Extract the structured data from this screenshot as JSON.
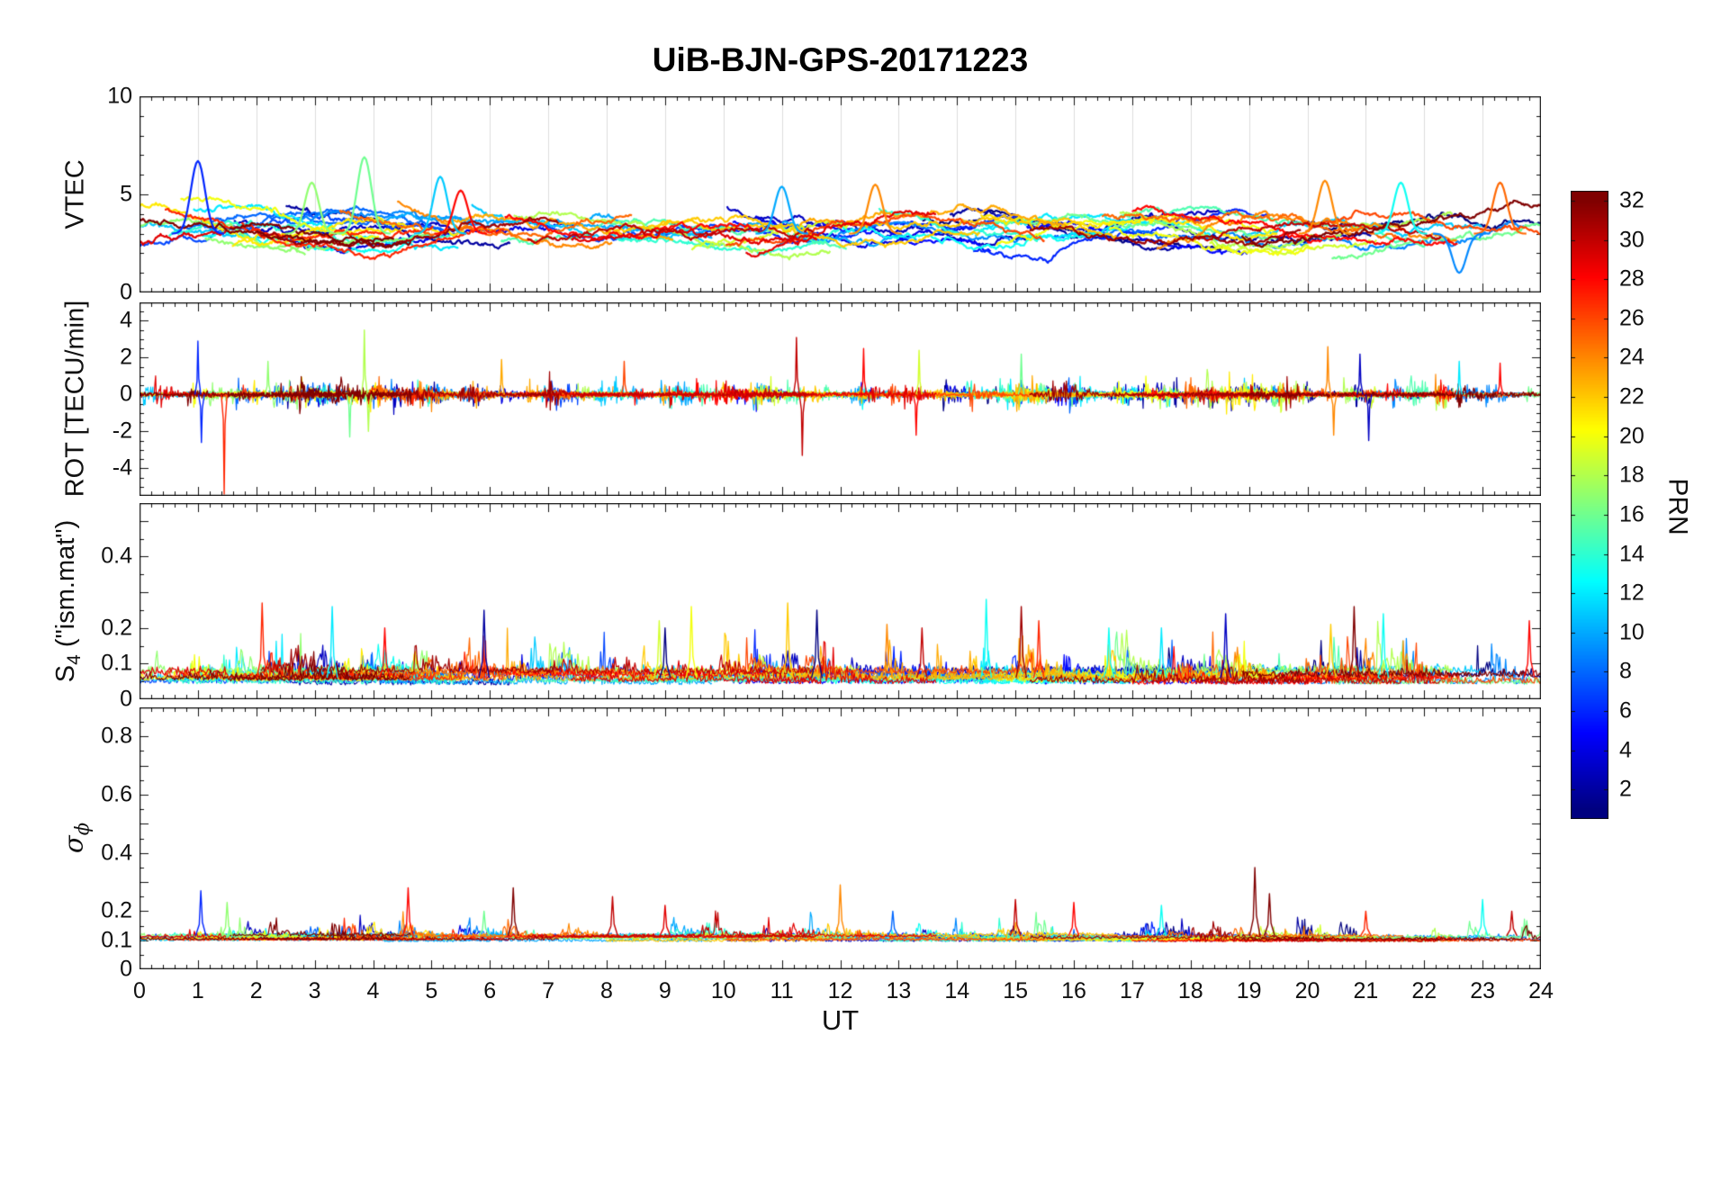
{
  "chart_data": {
    "type": "line",
    "title": "UiB-BJN-GPS-20171223",
    "description": "Four stacked time-series panels of GPS ionosphere parameters versus universal time, one noisy trace per satellite PRN (1-32), colored by the jet colormap.",
    "x": {
      "label": "UT",
      "lim": [
        0,
        24
      ],
      "minor_step": 0.2,
      "ticks": [
        {
          "v": 0,
          "label": "0"
        },
        {
          "v": 1,
          "label": "1"
        },
        {
          "v": 2,
          "label": "2"
        },
        {
          "v": 3,
          "label": "3"
        },
        {
          "v": 4,
          "label": "4"
        },
        {
          "v": 5,
          "label": "5"
        },
        {
          "v": 6,
          "label": "6"
        },
        {
          "v": 7,
          "label": "7"
        },
        {
          "v": 8,
          "label": "8"
        },
        {
          "v": 9,
          "label": "9"
        },
        {
          "v": 10,
          "label": "10"
        },
        {
          "v": 11,
          "label": "11"
        },
        {
          "v": 12,
          "label": "12"
        },
        {
          "v": 13,
          "label": "13"
        },
        {
          "v": 14,
          "label": "14"
        },
        {
          "v": 15,
          "label": "15"
        },
        {
          "v": 16,
          "label": "16"
        },
        {
          "v": 17,
          "label": "17"
        },
        {
          "v": 18,
          "label": "18"
        },
        {
          "v": 19,
          "label": "19"
        },
        {
          "v": 20,
          "label": "20"
        },
        {
          "v": 21,
          "label": "21"
        },
        {
          "v": 22,
          "label": "22"
        },
        {
          "v": 23,
          "label": "23"
        },
        {
          "v": 24,
          "label": "24"
        }
      ]
    },
    "colorbar": {
      "label": "PRN",
      "vmin": 0.5,
      "vmax": 32.5,
      "colormap": "jet",
      "ticks": [
        {
          "v": 2,
          "label": "2"
        },
        {
          "v": 4,
          "label": "4"
        },
        {
          "v": 6,
          "label": "6"
        },
        {
          "v": 8,
          "label": "8"
        },
        {
          "v": 10,
          "label": "10"
        },
        {
          "v": 12,
          "label": "12"
        },
        {
          "v": 14,
          "label": "14"
        },
        {
          "v": 16,
          "label": "16"
        },
        {
          "v": 18,
          "label": "18"
        },
        {
          "v": 20,
          "label": "20"
        },
        {
          "v": 22,
          "label": "22"
        },
        {
          "v": 24,
          "label": "24"
        },
        {
          "v": 26,
          "label": "26"
        },
        {
          "v": 28,
          "label": "28"
        },
        {
          "v": 30,
          "label": "30"
        },
        {
          "v": 32,
          "label": "32"
        }
      ]
    },
    "synthesis": {
      "seed": 20171223,
      "prn_count": 32,
      "note": "Traces are dense noisy satellite arcs; reconstructed statistically from seeded noise plus the listed prominent features read off the figure."
    },
    "panels": [
      {
        "name": "VTEC",
        "ylabel": "VTEC",
        "ylim": [
          0,
          10
        ],
        "yticks": [
          {
            "v": 0,
            "label": "0"
          },
          {
            "v": 5,
            "label": "5"
          },
          {
            "v": 10,
            "label": "10"
          }
        ],
        "ymajor_marks": [
          0,
          5,
          10
        ],
        "yminor_step": 1,
        "grid_x": true,
        "typical_range": [
          2,
          5
        ],
        "synth": {
          "kind": "walk",
          "base": 3.1,
          "start_range": [
            2.2,
            4.2
          ],
          "step": 0.1,
          "pull": 0.015,
          "clamp": [
            1.1,
            7.0
          ],
          "linewidth": 2.2
        },
        "features": [
          {
            "prn": 6,
            "t": 1.0,
            "v": 6.7
          },
          {
            "prn": 16,
            "t": 3.85,
            "v": 6.9
          },
          {
            "prn": 17,
            "t": 2.95,
            "v": 5.6
          },
          {
            "prn": 11,
            "t": 5.15,
            "v": 5.9
          },
          {
            "prn": 28,
            "t": 5.5,
            "v": 5.2
          },
          {
            "prn": 10,
            "t": 11.0,
            "v": 5.4
          },
          {
            "prn": 24,
            "t": 12.6,
            "v": 5.5
          },
          {
            "prn": 24,
            "t": 20.3,
            "v": 5.7
          },
          {
            "prn": 13,
            "t": 21.6,
            "v": 5.6
          },
          {
            "prn": 25,
            "t": 23.3,
            "v": 5.6
          },
          {
            "prn": 9,
            "t": 22.6,
            "v": 1.0
          }
        ]
      },
      {
        "name": "ROT",
        "ylabel": "ROT [TECU/min]",
        "ylim": [
          -5.5,
          5
        ],
        "yticks": [
          {
            "v": -4,
            "label": "-4"
          },
          {
            "v": -2,
            "label": "-2"
          },
          {
            "v": 0,
            "label": "0"
          },
          {
            "v": 2,
            "label": "2"
          },
          {
            "v": 4,
            "label": "4"
          }
        ],
        "ymajor_marks": [
          -4,
          -2,
          0,
          2,
          4
        ],
        "yminor_step": 0.5,
        "grid_x": false,
        "typical_range": [
          -0.5,
          0.5
        ],
        "synth": {
          "kind": "spiky",
          "env": 0.12,
          "burst_p": 0.01,
          "burst_amp": [
            0.35,
            1.25
          ],
          "env_decay": 0.06,
          "linewidth": 1.2
        },
        "features": [
          {
            "prn": 6,
            "t": 1.0,
            "v": 2.9
          },
          {
            "prn": 6,
            "t": 1.06,
            "v": -2.6
          },
          {
            "prn": 27,
            "t": 1.45,
            "v": -5.4
          },
          {
            "prn": 17,
            "t": 2.2,
            "v": 1.8
          },
          {
            "prn": 16,
            "t": 3.6,
            "v": -2.3
          },
          {
            "prn": 18,
            "t": 3.85,
            "v": 3.5
          },
          {
            "prn": 18,
            "t": 3.92,
            "v": -2.0
          },
          {
            "prn": 23,
            "t": 6.2,
            "v": 1.9
          },
          {
            "prn": 26,
            "t": 8.3,
            "v": 1.8
          },
          {
            "prn": 30,
            "t": 11.25,
            "v": 3.1
          },
          {
            "prn": 30,
            "t": 11.35,
            "v": -3.3
          },
          {
            "prn": 28,
            "t": 12.4,
            "v": 2.5
          },
          {
            "prn": 28,
            "t": 13.3,
            "v": -2.2
          },
          {
            "prn": 19,
            "t": 13.35,
            "v": 2.4
          },
          {
            "prn": 16,
            "t": 15.1,
            "v": 2.2
          },
          {
            "prn": 24,
            "t": 20.35,
            "v": 2.6
          },
          {
            "prn": 24,
            "t": 20.45,
            "v": -2.2
          },
          {
            "prn": 3,
            "t": 20.9,
            "v": 2.2
          },
          {
            "prn": 3,
            "t": 21.05,
            "v": -2.5
          },
          {
            "prn": 12,
            "t": 22.6,
            "v": 1.8
          },
          {
            "prn": 28,
            "t": 23.3,
            "v": 1.7
          }
        ]
      },
      {
        "name": "S4",
        "ylabel_main": "S",
        "ylabel_sub": "4",
        "ylabel_rest": " (\"ism.mat\")",
        "ylim": [
          0,
          0.55
        ],
        "yticks": [
          {
            "v": 0,
            "label": "0"
          },
          {
            "v": 0.1,
            "label": "0.1"
          },
          {
            "v": 0.2,
            "label": "0.2"
          },
          {
            "v": 0.4,
            "label": "0.4"
          }
        ],
        "ymajor_marks": [
          0,
          0.1,
          0.2,
          0.3,
          0.4,
          0.5
        ],
        "yminor_step": 0.05,
        "grid_x": false,
        "typical_range": [
          0.04,
          0.12
        ],
        "synth": {
          "kind": "band",
          "base_range": [
            0.04,
            0.075
          ],
          "env": 0.02,
          "burst_p": 0.008,
          "burst_amp": [
            0.05,
            0.17
          ],
          "env_decay": 0.08,
          "linewidth": 1.2
        },
        "features": [
          {
            "prn": 27,
            "t": 2.1,
            "v": 0.27
          },
          {
            "prn": 12,
            "t": 3.3,
            "v": 0.26
          },
          {
            "prn": 28,
            "t": 4.2,
            "v": 0.2
          },
          {
            "prn": 2,
            "t": 5.9,
            "v": 0.25
          },
          {
            "prn": 19,
            "t": 8.9,
            "v": 0.22
          },
          {
            "prn": 1,
            "t": 9.0,
            "v": 0.2
          },
          {
            "prn": 20,
            "t": 9.45,
            "v": 0.26
          },
          {
            "prn": 22,
            "t": 11.1,
            "v": 0.27
          },
          {
            "prn": 1,
            "t": 11.6,
            "v": 0.25
          },
          {
            "prn": 24,
            "t": 12.8,
            "v": 0.21
          },
          {
            "prn": 30,
            "t": 13.4,
            "v": 0.2
          },
          {
            "prn": 13,
            "t": 14.5,
            "v": 0.28
          },
          {
            "prn": 31,
            "t": 15.1,
            "v": 0.26
          },
          {
            "prn": 27,
            "t": 15.4,
            "v": 0.22
          },
          {
            "prn": 13,
            "t": 16.6,
            "v": 0.2
          },
          {
            "prn": 12,
            "t": 17.5,
            "v": 0.2
          },
          {
            "prn": 3,
            "t": 18.6,
            "v": 0.24
          },
          {
            "prn": 22,
            "t": 20.4,
            "v": 0.21
          },
          {
            "prn": 32,
            "t": 20.8,
            "v": 0.26
          },
          {
            "prn": 13,
            "t": 21.3,
            "v": 0.24
          },
          {
            "prn": 28,
            "t": 23.8,
            "v": 0.22
          }
        ]
      },
      {
        "name": "sigma_phi",
        "ylabel_main": "σ",
        "ylabel_sub": "ϕ",
        "ylim": [
          0,
          0.9
        ],
        "yticks": [
          {
            "v": 0,
            "label": "0"
          },
          {
            "v": 0.1,
            "label": "0.1"
          },
          {
            "v": 0.2,
            "label": "0.2"
          },
          {
            "v": 0.4,
            "label": "0.4"
          },
          {
            "v": 0.6,
            "label": "0.6"
          },
          {
            "v": 0.8,
            "label": "0.8"
          }
        ],
        "ymajor_marks": [
          0,
          0.1,
          0.2,
          0.3,
          0.4,
          0.5,
          0.6,
          0.7,
          0.8,
          0.9
        ],
        "yminor_step": 0.05,
        "grid_x": false,
        "typical_range": [
          0.09,
          0.15
        ],
        "synth": {
          "kind": "band",
          "base_range": [
            0.095,
            0.115
          ],
          "env": 0.01,
          "burst_p": 0.005,
          "burst_amp": [
            0.03,
            0.1
          ],
          "env_decay": 0.08,
          "linewidth": 1.2
        },
        "features": [
          {
            "prn": 6,
            "t": 1.05,
            "v": 0.27
          },
          {
            "prn": 17,
            "t": 1.5,
            "v": 0.23
          },
          {
            "prn": 28,
            "t": 4.6,
            "v": 0.28
          },
          {
            "prn": 16,
            "t": 5.9,
            "v": 0.2
          },
          {
            "prn": 32,
            "t": 6.4,
            "v": 0.28
          },
          {
            "prn": 30,
            "t": 8.1,
            "v": 0.25
          },
          {
            "prn": 29,
            "t": 9.0,
            "v": 0.22
          },
          {
            "prn": 24,
            "t": 12.0,
            "v": 0.29
          },
          {
            "prn": 8,
            "t": 12.9,
            "v": 0.2
          },
          {
            "prn": 30,
            "t": 15.0,
            "v": 0.24
          },
          {
            "prn": 28,
            "t": 16.0,
            "v": 0.23
          },
          {
            "prn": 13,
            "t": 17.5,
            "v": 0.22
          },
          {
            "prn": 32,
            "t": 19.1,
            "v": 0.35
          },
          {
            "prn": 32,
            "t": 19.35,
            "v": 0.26
          },
          {
            "prn": 27,
            "t": 21.0,
            "v": 0.2
          },
          {
            "prn": 13,
            "t": 23.0,
            "v": 0.24
          },
          {
            "prn": 30,
            "t": 23.5,
            "v": 0.2
          }
        ]
      }
    ]
  }
}
